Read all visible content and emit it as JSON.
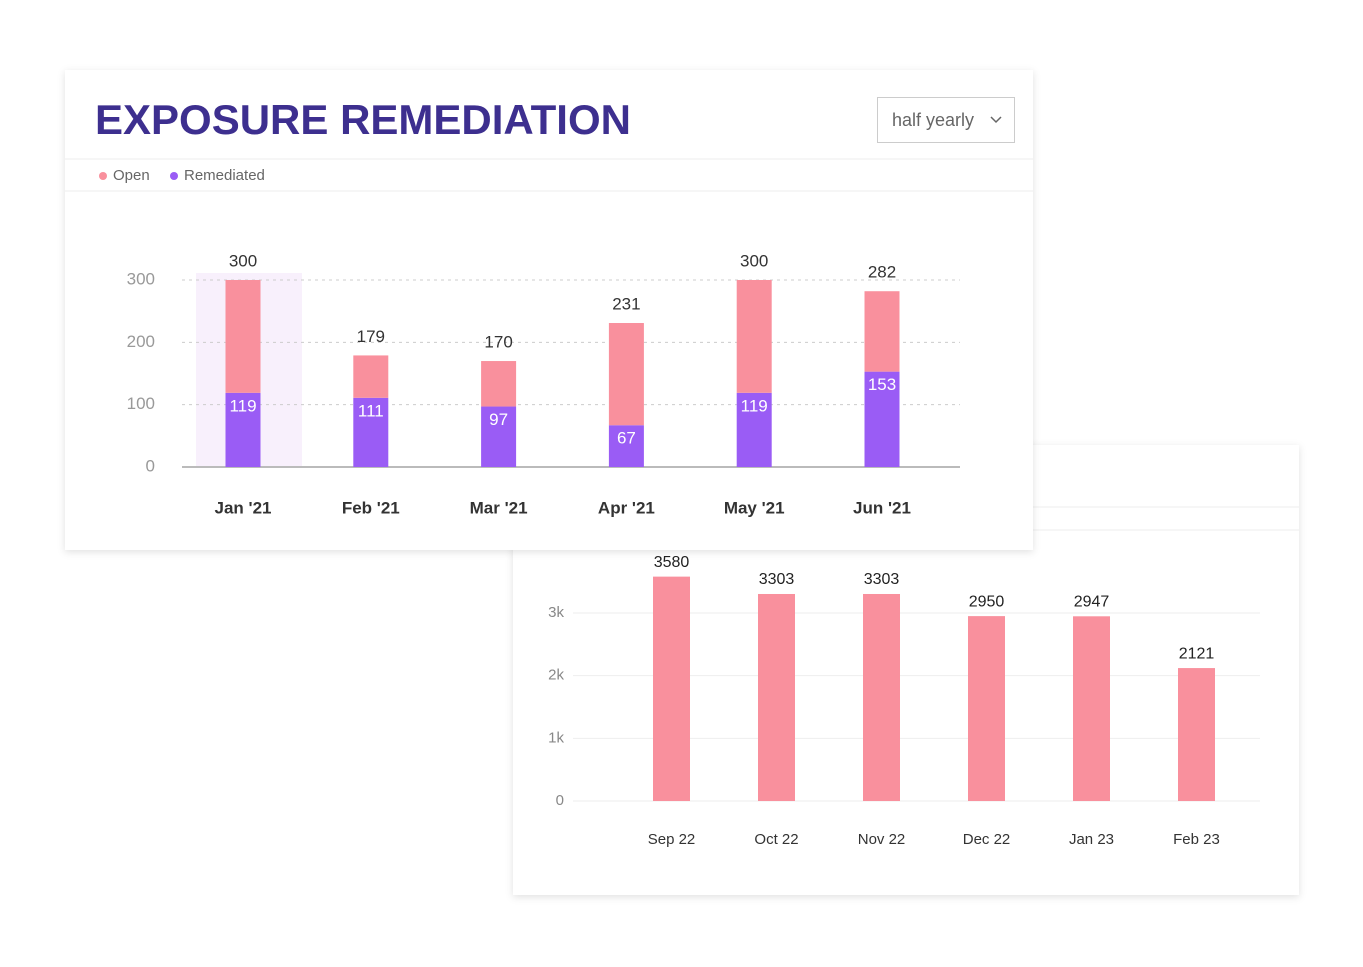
{
  "header": {
    "title": "EXPOSURE REMEDIATION",
    "period": "half yearly"
  },
  "chart_data": [
    {
      "type": "stacked_bar",
      "categories": [
        "Jan '21",
        "Feb '21",
        "Mar '21",
        "Apr '21",
        "May '21",
        "Jun '21"
      ],
      "series": [
        {
          "name": "Open",
          "color": "#f9909d",
          "values": [
            181,
            68,
            73,
            164,
            181,
            129
          ]
        },
        {
          "name": "Remediated",
          "color": "#9a5cf5",
          "values": [
            119,
            111,
            97,
            67,
            119,
            153
          ]
        }
      ],
      "totals": [
        300,
        179,
        170,
        231,
        300,
        282
      ],
      "ylim": [
        0,
        300
      ],
      "yticks": [
        0,
        100,
        200,
        300
      ],
      "grid": true,
      "legend": "top-left"
    },
    {
      "type": "bar",
      "categories": [
        "Sep 22",
        "Oct 22",
        "Nov 22",
        "Dec 22",
        "Jan 23",
        "Feb 23"
      ],
      "values": [
        3580,
        3303,
        3303,
        2950,
        2947,
        2121
      ],
      "color": "#f9909d",
      "ylim": [
        0,
        4000
      ],
      "yticks": [
        0,
        {
          "value": 1000,
          "label": "1k"
        },
        {
          "value": 2000,
          "label": "2k"
        },
        {
          "value": 3000,
          "label": "3k"
        }
      ],
      "grid": true
    }
  ]
}
